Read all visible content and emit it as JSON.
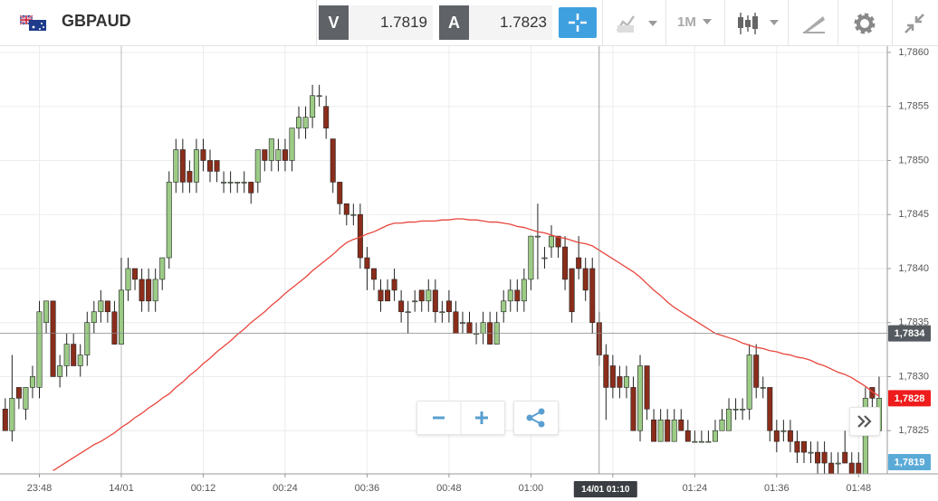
{
  "toolbar": {
    "instrument": "GBPAUD",
    "sell_label": "V",
    "sell_price": 1.7819,
    "buy_label": "A",
    "buy_price": 1.7823,
    "timeframe": "1M"
  },
  "chart_data": {
    "type": "candlestick",
    "categories": [
      null,
      null,
      null,
      null,
      null,
      "23:48",
      null,
      null,
      null,
      null,
      null,
      null,
      null,
      null,
      null,
      null,
      null,
      "14/01",
      null,
      null,
      null,
      null,
      null,
      null,
      null,
      null,
      null,
      null,
      null,
      "00:12",
      null,
      null,
      null,
      null,
      null,
      null,
      null,
      null,
      null,
      null,
      null,
      "00:24",
      null,
      null,
      null,
      null,
      null,
      null,
      null,
      null,
      null,
      null,
      null,
      "00:36",
      null,
      null,
      null,
      null,
      null,
      null,
      null,
      null,
      null,
      null,
      null,
      "00:48",
      null,
      null,
      null,
      null,
      null,
      null,
      null,
      null,
      null,
      null,
      null,
      "01:00",
      null,
      null,
      null,
      null,
      null,
      null,
      null,
      null,
      null,
      null,
      null,
      "01:12",
      null,
      null,
      null,
      null,
      null,
      null,
      null,
      null,
      null,
      null,
      null,
      "01:24",
      null,
      null,
      null,
      null,
      null,
      null,
      null,
      null,
      null,
      null,
      null,
      "01:36",
      null,
      null,
      null,
      null,
      null,
      null,
      null,
      null,
      null,
      null,
      null,
      "01:48",
      null,
      null,
      null
    ],
    "open": [
      1.7827,
      1.7825,
      1.7829,
      1.7827,
      1.7829,
      1.7829,
      1.7835,
      1.7837,
      1.783,
      1.7831,
      1.7833,
      1.7831,
      1.7832,
      1.7835,
      1.7836,
      1.7837,
      1.7836,
      1.7833,
      1.7838,
      1.784,
      1.7839,
      1.7839,
      1.7837,
      1.7839,
      1.7841,
      1.7848,
      1.7851,
      1.7849,
      1.7848,
      1.7851,
      1.785,
      1.785,
      1.7848,
      1.7848,
      1.7848,
      1.7848,
      1.7848,
      1.7848,
      1.7851,
      1.785,
      1.785,
      1.7851,
      1.785,
      1.7853,
      1.7853,
      1.7854,
      1.7856,
      1.7855,
      1.7852,
      1.7848,
      1.7846,
      1.7845,
      1.7845,
      1.7841,
      1.784,
      1.7838,
      1.7838,
      1.7839,
      1.7837,
      1.7836,
      1.7837,
      1.7838,
      1.7837,
      1.7838,
      1.7836,
      1.7837,
      1.7836,
      1.7835,
      1.7835,
      1.7834,
      1.7834,
      1.7835,
      1.7833,
      1.7836,
      1.7837,
      1.7838,
      1.7837,
      1.7839,
      1.7843,
      1.7841,
      1.7842,
      1.7843,
      1.7842,
      1.784,
      1.7841,
      1.784,
      1.784,
      1.7835,
      1.7832,
      1.7831,
      1.783,
      1.7829,
      1.7829,
      1.7825,
      1.7831,
      1.7826,
      1.7824,
      1.7826,
      1.7824,
      1.7826,
      1.7825,
      1.7824,
      1.7824,
      1.7824,
      1.7824,
      1.7825,
      1.7825,
      1.7827,
      1.7827,
      1.7827,
      1.7832,
      1.7829,
      1.7829,
      1.7825,
      1.7825,
      1.7825,
      1.7824,
      1.7824,
      1.7823,
      1.7823,
      1.7823,
      1.7822,
      1.7822,
      1.7823,
      1.7822,
      1.7822,
      1.7821,
      1.7829,
      1.7825
    ],
    "high": [
      1.7828,
      1.7832,
      1.7829,
      1.7829,
      1.7831,
      1.7837,
      1.7837,
      1.7837,
      1.7832,
      1.7834,
      1.7834,
      1.7833,
      1.7836,
      1.7837,
      1.7838,
      1.7837,
      1.7837,
      1.7841,
      1.7841,
      1.784,
      1.784,
      1.784,
      1.784,
      1.7841,
      1.7849,
      1.7852,
      1.7852,
      1.785,
      1.7852,
      1.7852,
      1.7851,
      1.785,
      1.7849,
      1.7849,
      1.7848,
      1.7849,
      1.7848,
      1.7851,
      1.7851,
      1.7852,
      1.7852,
      1.7852,
      1.7853,
      1.7855,
      1.7855,
      1.7857,
      1.7857,
      1.7856,
      1.7852,
      1.7848,
      1.7846,
      1.7846,
      1.7846,
      1.7842,
      1.784,
      1.7839,
      1.7839,
      1.784,
      1.7838,
      1.7837,
      1.7838,
      1.7838,
      1.7839,
      1.7839,
      1.7837,
      1.7838,
      1.7837,
      1.7836,
      1.7836,
      1.7835,
      1.7836,
      1.7836,
      1.7836,
      1.7838,
      1.7839,
      1.7839,
      1.784,
      1.7843,
      1.7846,
      1.7842,
      1.7844,
      1.7843,
      1.7843,
      1.784,
      1.7843,
      1.7841,
      1.7841,
      1.7836,
      1.7833,
      1.7832,
      1.7831,
      1.7831,
      1.783,
      1.7832,
      1.7831,
      1.7827,
      1.7827,
      1.7827,
      1.7827,
      1.7827,
      1.7826,
      1.7825,
      1.7825,
      1.7825,
      1.7826,
      1.7827,
      1.7828,
      1.7828,
      1.7828,
      1.7833,
      1.7833,
      1.783,
      1.7829,
      1.7826,
      1.7826,
      1.7826,
      1.7825,
      1.7824,
      1.7824,
      1.7824,
      1.7824,
      1.7823,
      1.7823,
      1.7825,
      1.7823,
      1.7823,
      1.7829,
      1.7829,
      1.783
    ],
    "low": [
      1.7825,
      1.7824,
      1.7827,
      1.7826,
      1.7828,
      1.7828,
      1.7834,
      1.783,
      1.7829,
      1.783,
      1.7831,
      1.783,
      1.7831,
      1.7834,
      1.7835,
      1.7835,
      1.7833,
      1.7833,
      1.7837,
      1.7838,
      1.7836,
      1.7836,
      1.7836,
      1.7838,
      1.784,
      1.7847,
      1.7847,
      1.7847,
      1.7847,
      1.7849,
      1.7848,
      1.7848,
      1.7847,
      1.7847,
      1.7847,
      1.7847,
      1.7846,
      1.7847,
      1.7849,
      1.7849,
      1.7849,
      1.7849,
      1.7849,
      1.7852,
      1.7852,
      1.7853,
      1.7855,
      1.7852,
      1.7847,
      1.7845,
      1.7844,
      1.7844,
      1.784,
      1.7838,
      1.7838,
      1.7836,
      1.7837,
      1.7837,
      1.7835,
      1.7834,
      1.7836,
      1.7836,
      1.7836,
      1.7835,
      1.7835,
      1.7835,
      1.7834,
      1.7834,
      1.7834,
      1.7833,
      1.7833,
      1.7833,
      1.7833,
      1.7835,
      1.7836,
      1.7836,
      1.7836,
      1.7838,
      1.7839,
      1.784,
      1.7841,
      1.7841,
      1.7838,
      1.7835,
      1.7839,
      1.7837,
      1.7834,
      1.7831,
      1.7826,
      1.7828,
      1.7828,
      1.7828,
      1.7825,
      1.7824,
      1.7826,
      1.7824,
      1.7824,
      1.7824,
      1.7824,
      1.7825,
      1.7824,
      1.7824,
      1.7824,
      1.7824,
      1.7824,
      1.7825,
      1.7825,
      1.7826,
      1.7826,
      1.7826,
      1.7828,
      1.7828,
      1.7824,
      1.7823,
      1.7824,
      1.7823,
      1.7822,
      1.7822,
      1.7822,
      1.7821,
      1.7821,
      1.7821,
      1.7821,
      1.7822,
      1.7821,
      1.7821,
      1.7821,
      1.7827,
      1.7825
    ],
    "close": [
      1.7825,
      1.7828,
      1.7828,
      1.7829,
      1.783,
      1.7836,
      1.7837,
      1.783,
      1.7831,
      1.7833,
      1.7831,
      1.7832,
      1.7835,
      1.7836,
      1.7837,
      1.7836,
      1.7833,
      1.7838,
      1.784,
      1.7839,
      1.7837,
      1.7837,
      1.7839,
      1.7841,
      1.7848,
      1.7851,
      1.7848,
      1.7848,
      1.7851,
      1.785,
      1.7849,
      1.7849,
      1.7848,
      1.7848,
      1.7848,
      1.7848,
      1.7847,
      1.7851,
      1.785,
      1.7852,
      1.7851,
      1.785,
      1.7853,
      1.7854,
      1.7854,
      1.7856,
      1.7856,
      1.7853,
      1.7848,
      1.7846,
      1.7845,
      1.7845,
      1.7841,
      1.784,
      1.7839,
      1.7837,
      1.7837,
      1.7838,
      1.7836,
      1.7836,
      1.7837,
      1.7837,
      1.7838,
      1.7836,
      1.7836,
      1.7836,
      1.7834,
      1.7835,
      1.7834,
      1.7834,
      1.7835,
      1.7833,
      1.7835,
      1.7837,
      1.7838,
      1.7837,
      1.7839,
      1.7843,
      1.7843,
      1.7841,
      1.7843,
      1.7842,
      1.7839,
      1.7836,
      1.784,
      1.7838,
      1.7835,
      1.7832,
      1.7829,
      1.7829,
      1.7829,
      1.783,
      1.7825,
      1.7831,
      1.7827,
      1.7824,
      1.7826,
      1.7824,
      1.7826,
      1.7825,
      1.7824,
      1.7824,
      1.7824,
      1.7824,
      1.7825,
      1.7826,
      1.7827,
      1.7827,
      1.7827,
      1.7832,
      1.7829,
      1.7829,
      1.7825,
      1.7824,
      1.7825,
      1.7824,
      1.7823,
      1.7823,
      1.7823,
      1.7822,
      1.7822,
      1.7821,
      1.7822,
      1.7822,
      1.7821,
      1.7821,
      1.7828,
      1.7828,
      1.7828
    ],
    "up_color": "#9ccb86",
    "down_color": "#8b2d1b",
    "moving_average": {
      "color": "#e8453c",
      "values": [
        null,
        null,
        null,
        null,
        null,
        null,
        null,
        1.78213,
        1.78217,
        1.78221,
        1.78225,
        1.78229,
        1.78233,
        1.78237,
        1.7824,
        1.78244,
        1.78248,
        1.78253,
        1.78257,
        1.78262,
        1.78266,
        1.78271,
        1.78275,
        1.7828,
        1.78284,
        1.7829,
        1.78295,
        1.78301,
        1.78306,
        1.78312,
        1.78317,
        1.78323,
        1.78328,
        1.78333,
        1.78339,
        1.78344,
        1.7835,
        1.78355,
        1.7836,
        1.78366,
        1.78371,
        1.78377,
        1.78382,
        1.78387,
        1.78392,
        1.78398,
        1.78403,
        1.78408,
        1.78413,
        1.78419,
        1.78424,
        1.78427,
        1.78429,
        1.78432,
        1.78434,
        1.78437,
        1.7844,
        1.78442,
        1.78442,
        1.78443,
        1.78443,
        1.78444,
        1.78444,
        1.78444,
        1.78445,
        1.78445,
        1.78446,
        1.78446,
        1.78445,
        1.78445,
        1.78444,
        1.78443,
        1.78443,
        1.78442,
        1.78441,
        1.78439,
        1.78438,
        1.78436,
        1.78434,
        1.78433,
        1.78431,
        1.78429,
        1.78428,
        1.78426,
        1.78424,
        1.78423,
        1.78421,
        1.78417,
        1.78413,
        1.78409,
        1.78405,
        1.78401,
        1.78397,
        1.78392,
        1.78386,
        1.7838,
        1.78375,
        1.78369,
        1.78364,
        1.7836,
        1.78356,
        1.78352,
        1.78348,
        1.78344,
        1.7834,
        1.78338,
        1.78336,
        1.78334,
        1.78331,
        1.78329,
        1.78327,
        1.78326,
        1.78324,
        1.78323,
        1.78321,
        1.7832,
        1.78318,
        1.78317,
        1.78315,
        1.78312,
        1.7831,
        1.78307,
        1.78304,
        1.78302,
        1.78299,
        1.78295,
        1.78291,
        1.78286,
        1.78282
      ]
    },
    "ylim": [
      1.7821,
      1.78605
    ],
    "yticks": [
      {
        "value": 1.786,
        "label": "1,7860"
      },
      {
        "value": 1.7855,
        "label": "1,7855"
      },
      {
        "value": 1.785,
        "label": "1,7850"
      },
      {
        "value": 1.7845,
        "label": "1,7845"
      },
      {
        "value": 1.784,
        "label": "1,7840"
      },
      {
        "value": 1.7835,
        "label": "1,7835"
      },
      {
        "value": 1.783,
        "label": "1,7830"
      },
      {
        "value": 1.7825,
        "label": "1,7825"
      }
    ],
    "grid": true,
    "crosshair": {
      "price": {
        "value": 1.7834,
        "label": "1,7834"
      },
      "time": "14/01 01:10"
    },
    "last_price": {
      "value": 1.7828,
      "label": "1,7828",
      "color": "#ee1c1c"
    },
    "bid_price": {
      "value": 1.7819,
      "label": "1,7819",
      "color": "#5aaad8"
    }
  }
}
